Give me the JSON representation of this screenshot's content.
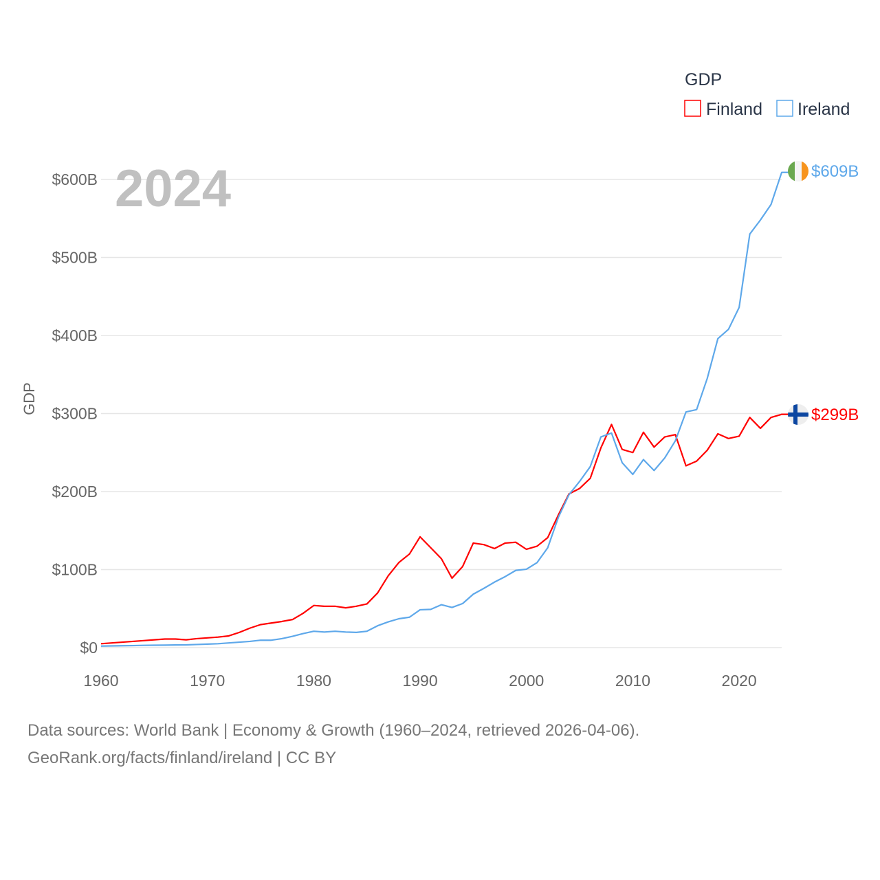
{
  "chart_data": {
    "type": "line",
    "title": "",
    "year_label": "2024",
    "legend_title": "GDP",
    "legend_position": "top-right",
    "xlabel": "",
    "ylabel": "GDP",
    "xlim": [
      1960,
      2024
    ],
    "ylim": [
      0,
      600
    ],
    "x_ticks": [
      1960,
      1970,
      1980,
      1990,
      2000,
      2010,
      2020
    ],
    "x_tick_labels": [
      "1960",
      "1970",
      "1980",
      "1990",
      "2000",
      "2010",
      "2020"
    ],
    "y_ticks": [
      0,
      100,
      200,
      300,
      400,
      500,
      600
    ],
    "y_tick_labels": [
      "$0",
      "$100B",
      "$200B",
      "$300B",
      "$400B",
      "$500B",
      "$600B"
    ],
    "grid": true,
    "units": "billion USD",
    "x": [
      1960,
      1961,
      1962,
      1963,
      1964,
      1965,
      1966,
      1967,
      1968,
      1969,
      1970,
      1971,
      1972,
      1973,
      1974,
      1975,
      1976,
      1977,
      1978,
      1979,
      1980,
      1981,
      1982,
      1983,
      1984,
      1985,
      1986,
      1987,
      1988,
      1989,
      1990,
      1991,
      1992,
      1993,
      1994,
      1995,
      1996,
      1997,
      1998,
      1999,
      2000,
      2001,
      2002,
      2003,
      2004,
      2005,
      2006,
      2007,
      2008,
      2009,
      2010,
      2011,
      2012,
      2013,
      2014,
      2015,
      2016,
      2017,
      2018,
      2019,
      2020,
      2021,
      2022,
      2023,
      2024
    ],
    "series": [
      {
        "name": "Finland",
        "color": "#ff0000",
        "end_label": "$299B",
        "flag": "finland",
        "values": [
          5,
          6,
          7,
          8,
          9,
          10,
          11,
          11,
          10,
          11.5,
          12.5,
          13.5,
          15,
          19.5,
          25,
          29.5,
          31.5,
          33.5,
          36,
          44,
          54,
          53,
          53,
          51,
          53,
          56,
          70,
          92,
          109,
          120,
          142,
          128,
          114,
          89,
          104,
          134,
          132,
          127,
          134,
          135,
          126,
          130,
          141,
          170,
          197,
          204,
          217,
          256,
          286,
          254,
          250,
          276,
          257,
          270,
          273,
          233,
          239,
          253,
          274,
          268,
          271,
          295,
          281,
          295,
          299
        ]
      },
      {
        "name": "Ireland",
        "color": "#5ea8ea",
        "end_label": "$609B",
        "flag": "ireland",
        "values": [
          2,
          2.2,
          2.4,
          2.6,
          2.9,
          3.1,
          3.2,
          3.4,
          3.5,
          4,
          4.5,
          5,
          6,
          7,
          8,
          9.5,
          9.5,
          11.5,
          14.5,
          18,
          21,
          20,
          21,
          20,
          19.5,
          21,
          28,
          33,
          37,
          39,
          48.5,
          49,
          55,
          51.5,
          56.5,
          68.5,
          76,
          84,
          91,
          99,
          100.5,
          109,
          128,
          167,
          196,
          213,
          232,
          270,
          275,
          237,
          222,
          241,
          227,
          243,
          265,
          302,
          305,
          345,
          396,
          408,
          436,
          530,
          548,
          568,
          609
        ]
      }
    ]
  },
  "footer": {
    "line1": "Data sources: World Bank | Economy & Growth (1960–2024, retrieved 2026-04-06).",
    "line2": "GeoRank.org/facts/finland/ireland | CC BY"
  }
}
